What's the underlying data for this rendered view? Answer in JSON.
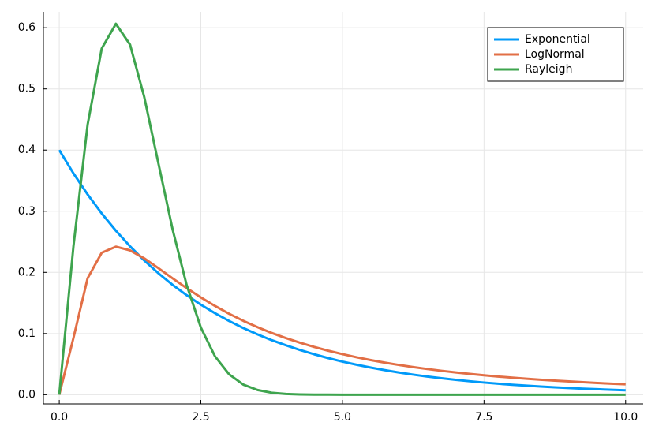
{
  "chart_data": {
    "type": "line",
    "x": [
      0,
      0.25,
      0.5,
      0.75,
      1,
      1.25,
      1.5,
      1.75,
      2,
      2.25,
      2.5,
      2.75,
      3,
      3.25,
      3.5,
      3.75,
      4,
      4.25,
      4.5,
      4.75,
      5,
      5.25,
      5.5,
      5.75,
      6,
      6.25,
      6.5,
      6.75,
      7,
      7.25,
      7.5,
      7.75,
      8,
      8.25,
      8.5,
      8.75,
      9,
      9.25,
      9.5,
      9.75,
      10
    ],
    "series": [
      {
        "name": "Exponential",
        "color": "#009af9",
        "values": [
          0.4,
          0.3619,
          0.3275,
          0.2963,
          0.2681,
          0.2426,
          0.2195,
          0.1986,
          0.1797,
          0.1626,
          0.1472,
          0.1332,
          0.1205,
          0.109,
          0.0986,
          0.0892,
          0.0808,
          0.0731,
          0.0661,
          0.0598,
          0.0541,
          0.049,
          0.0443,
          0.0401,
          0.0363,
          0.0328,
          0.0297,
          0.0269,
          0.0243,
          0.022,
          0.0199,
          0.018,
          0.0163,
          0.0148,
          0.0134,
          0.0121,
          0.0109,
          0.0099,
          0.009,
          0.0081,
          0.0073
        ]
      },
      {
        "name": "LogNormal",
        "color": "#e26f46",
        "values": [
          0,
          0.0926,
          0.1903,
          0.2321,
          0.242,
          0.236,
          0.2229,
          0.2069,
          0.1903,
          0.1742,
          0.159,
          0.1451,
          0.1323,
          0.1208,
          0.1104,
          0.101,
          0.0926,
          0.085,
          0.0781,
          0.0719,
          0.0663,
          0.0612,
          0.0566,
          0.0524,
          0.0486,
          0.0451,
          0.042,
          0.0391,
          0.0364,
          0.034,
          0.0318,
          0.0297,
          0.0279,
          0.0261,
          0.0245,
          0.023,
          0.0217,
          0.0204,
          0.0192,
          0.0181,
          0.0171
        ]
      },
      {
        "name": "Rayleigh",
        "color": "#3ea44e",
        "values": [
          0,
          0.2423,
          0.4412,
          0.5661,
          0.6065,
          0.5723,
          0.487,
          0.3785,
          0.2707,
          0.1791,
          0.1098,
          0.0627,
          0.0333,
          0.0165,
          0.0077,
          0.0033,
          0.0013,
          0.0005,
          0.0002,
          0.0001,
          0,
          0,
          0,
          0,
          0,
          0,
          0,
          0,
          0,
          0,
          0,
          0,
          0,
          0,
          0,
          0,
          0,
          0,
          0,
          0,
          0
        ]
      }
    ],
    "xlim": [
      -0.28,
      10.31
    ],
    "ylim": [
      -0.015,
      0.626
    ],
    "xticks": [
      {
        "value": 0,
        "label": "0.0"
      },
      {
        "value": 2.5,
        "label": "2.5"
      },
      {
        "value": 5,
        "label": "5.0"
      },
      {
        "value": 7.5,
        "label": "7.5"
      },
      {
        "value": 10,
        "label": "10.0"
      }
    ],
    "yticks": [
      {
        "value": 0,
        "label": "0.0"
      },
      0.1,
      0.2,
      0.3,
      0.4,
      0.5,
      0.6
    ],
    "grid": true,
    "legend": "top right"
  }
}
